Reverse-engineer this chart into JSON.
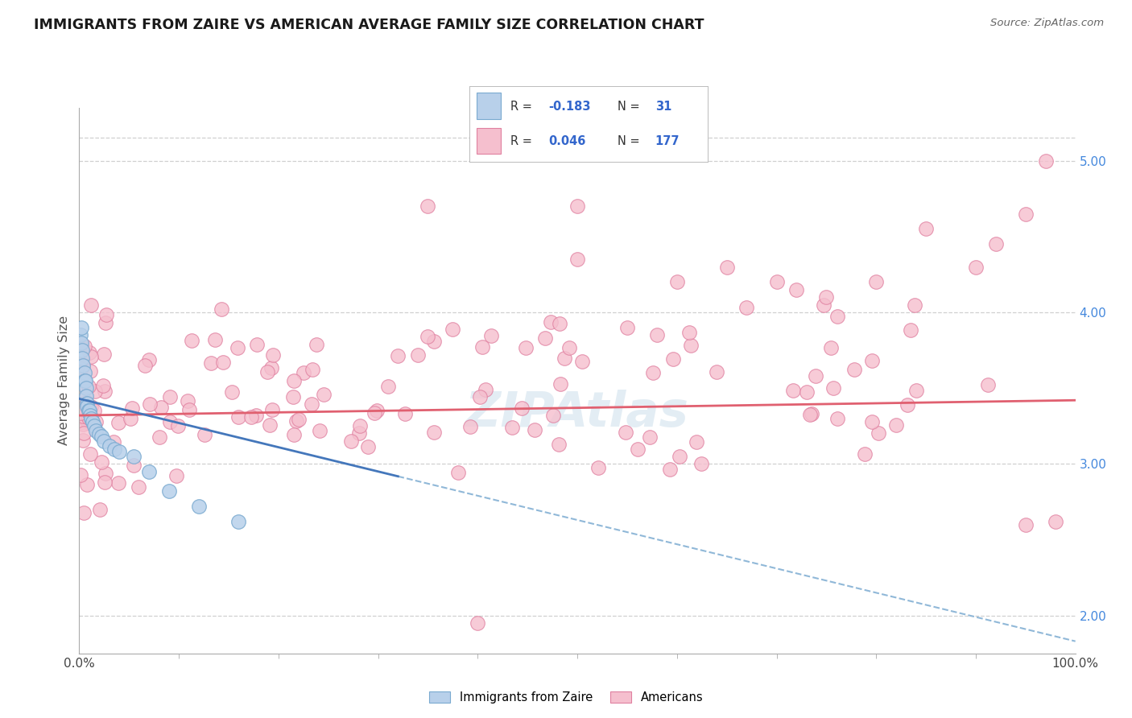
{
  "title": "IMMIGRANTS FROM ZAIRE VS AMERICAN AVERAGE FAMILY SIZE CORRELATION CHART",
  "source": "Source: ZipAtlas.com",
  "ylabel": "Average Family Size",
  "xmin": 0.0,
  "xmax": 1.0,
  "xtick_labels": [
    "0.0%",
    "100.0%"
  ],
  "ytick_vals_right": [
    2.0,
    3.0,
    4.0,
    5.0
  ],
  "ytick_labels_right": [
    "2.00",
    "3.00",
    "4.00",
    "5.00"
  ],
  "ymin": 1.75,
  "ymax": 5.35,
  "blue_R": -0.183,
  "blue_N": 31,
  "pink_R": 0.046,
  "pink_N": 177,
  "background_color": "#ffffff",
  "grid_color": "#d0d0d0",
  "title_color": "#1a1a1a",
  "source_color": "#666666",
  "blue_dot_color": "#b8d0ea",
  "blue_dot_edge": "#7aaad0",
  "pink_dot_color": "#f5bfce",
  "pink_dot_edge": "#e080a0",
  "blue_line_color": "#4477bb",
  "pink_line_color": "#e06070",
  "dashed_line_color": "#90b8d8",
  "watermark_color": "#c8dcea",
  "watermark_alpha": 0.5,
  "legend_text_color": "#3366cc",
  "legend_label_color": "#333333",
  "right_axis_color": "#4488dd",
  "seed": 99
}
